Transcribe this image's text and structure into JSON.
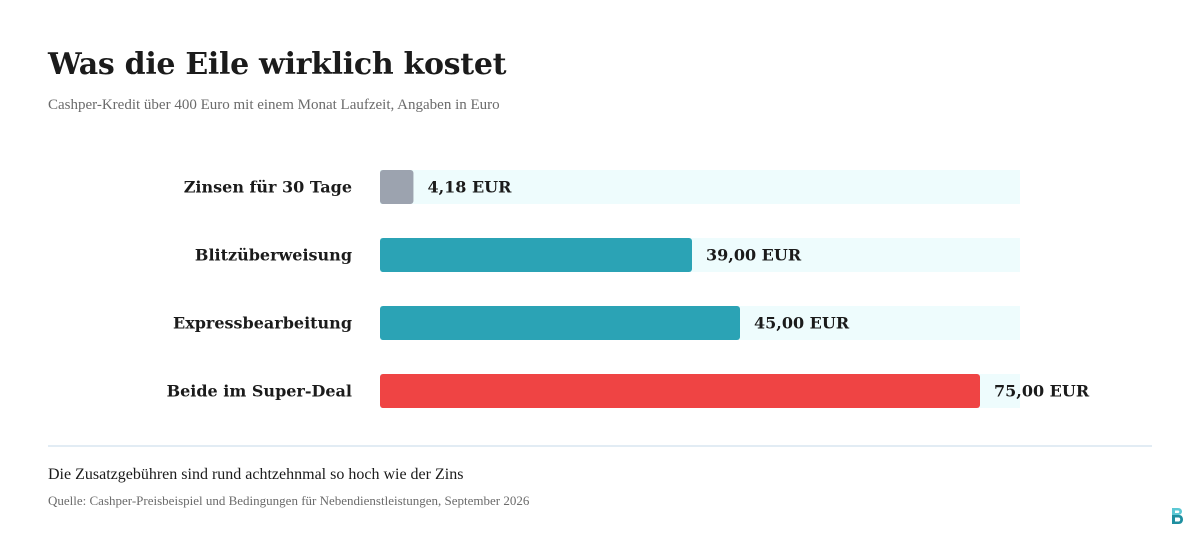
{
  "header": {
    "title": "Was die Eile wirklich kostet",
    "subtitle": "Cashper-Kredit über 400 Euro mit einem Monat Laufzeit, Angaben in Euro"
  },
  "chart_data": {
    "type": "bar",
    "orientation": "horizontal",
    "title": "Was die Eile wirklich kostet",
    "subtitle": "Cashper-Kredit über 400 Euro mit einem Monat Laufzeit, Angaben in Euro",
    "categories": [
      "Zinsen für 30 Tage",
      "Blitzüberweisung",
      "Expressbearbeitung",
      "Beide im Super-Deal"
    ],
    "values": [
      4.18,
      39.0,
      45.0,
      75.0
    ],
    "value_labels": [
      "4,18 EUR",
      "39,00 EUR",
      "45,00 EUR",
      "75,00 EUR"
    ],
    "bar_colors": [
      "#9ca3af",
      "#2ba3b5",
      "#2ba3b5",
      "#ef4444"
    ],
    "track_color": "#eefcfd",
    "xlim": [
      0,
      80
    ],
    "grid": false,
    "legend": "none"
  },
  "footer": {
    "note": "Die Zusatzgebühren sind rund achtzehnmal so hoch wie der Zins",
    "source": "Quelle: Cashper-Preisbeispiel und Bedingungen für Nebendienstleistungen, September 2026"
  },
  "logo": {
    "icon": "brand-logo-icon",
    "color_top": "#5cc8d4",
    "color_bottom": "#1f8fa0"
  }
}
